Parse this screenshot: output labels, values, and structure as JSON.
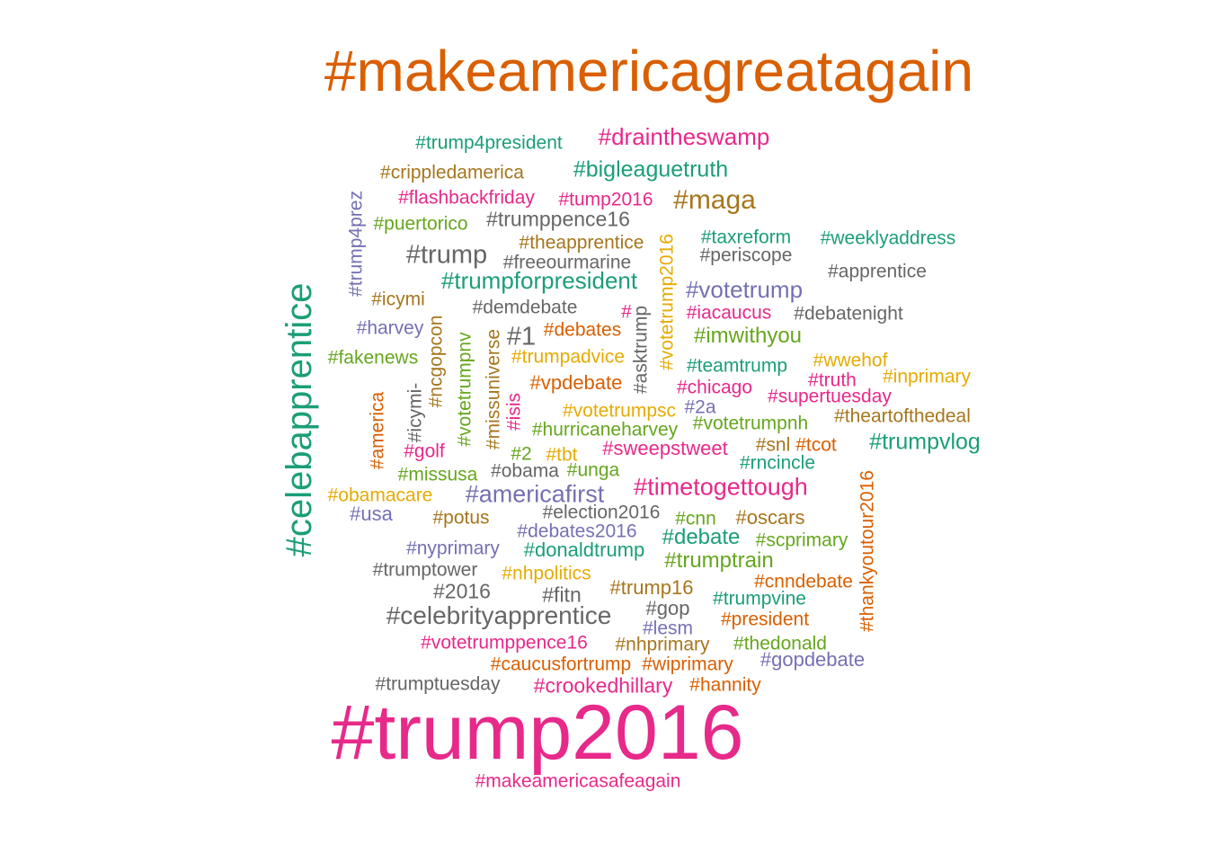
{
  "colors": {
    "green": "#1b9e77",
    "orange": "#d95f02",
    "purple": "#7570b3",
    "pink": "#e7298a",
    "lime": "#66a61e",
    "yellow": "#e6ab02",
    "brown": "#a6761d",
    "gray": "#666666"
  },
  "words": [
    {
      "text": "#makeamericagreatagain",
      "color": "orange"
    },
    {
      "text": "#trump2016",
      "color": "pink"
    },
    {
      "text": "#celebapprentice",
      "color": "green"
    },
    {
      "text": "#trump4president",
      "color": "green"
    },
    {
      "text": "#draintheswamp",
      "color": "pink"
    },
    {
      "text": "#crippledamerica",
      "color": "brown"
    },
    {
      "text": "#bigleaguetruth",
      "color": "green"
    },
    {
      "text": "#flashbackfriday",
      "color": "pink"
    },
    {
      "text": "#tump2016",
      "color": "pink"
    },
    {
      "text": "#maga",
      "color": "brown"
    },
    {
      "text": "#trump4prez",
      "color": "purple"
    },
    {
      "text": "#puertorico",
      "color": "lime"
    },
    {
      "text": "#trumppence16",
      "color": "gray"
    },
    {
      "text": "#votetrump2016",
      "color": "yellow"
    },
    {
      "text": "#taxreform",
      "color": "green"
    },
    {
      "text": "#weeklyaddress",
      "color": "green"
    },
    {
      "text": "#theapprentice",
      "color": "brown"
    },
    {
      "text": "#trump",
      "color": "gray"
    },
    {
      "text": "#periscope",
      "color": "gray"
    },
    {
      "text": "#freeourmarine",
      "color": "gray"
    },
    {
      "text": "#apprentice",
      "color": "gray"
    },
    {
      "text": "#trumpforpresident",
      "color": "green"
    },
    {
      "text": "#votetrump",
      "color": "purple"
    },
    {
      "text": "#icymi",
      "color": "brown"
    },
    {
      "text": "#demdebate",
      "color": "gray"
    },
    {
      "text": "#",
      "color": "pink"
    },
    {
      "text": "#iacaucus",
      "color": "pink"
    },
    {
      "text": "#debatenight",
      "color": "gray"
    },
    {
      "text": "#ncgopcon",
      "color": "brown"
    },
    {
      "text": "#asktrump",
      "color": "gray"
    },
    {
      "text": "#harvey",
      "color": "purple"
    },
    {
      "text": "#debates",
      "color": "orange"
    },
    {
      "text": "#1",
      "color": "gray"
    },
    {
      "text": "#imwithyou",
      "color": "lime"
    },
    {
      "text": "#missuniverse",
      "color": "brown"
    },
    {
      "text": "#votetrumpnv",
      "color": "lime"
    },
    {
      "text": "#fakenews",
      "color": "lime"
    },
    {
      "text": "#trumpadvice",
      "color": "yellow"
    },
    {
      "text": "#wwehof",
      "color": "yellow"
    },
    {
      "text": "#teamtrump",
      "color": "green"
    },
    {
      "text": "#inprimary",
      "color": "yellow"
    },
    {
      "text": "#truth",
      "color": "pink"
    },
    {
      "text": "#icymi-",
      "color": "gray"
    },
    {
      "text": "#vpdebate",
      "color": "orange"
    },
    {
      "text": "#chicago",
      "color": "pink"
    },
    {
      "text": "#supertuesday",
      "color": "pink"
    },
    {
      "text": "#america",
      "color": "orange"
    },
    {
      "text": "#isis",
      "color": "pink"
    },
    {
      "text": "#2a",
      "color": "purple"
    },
    {
      "text": "#votetrumpsc",
      "color": "yellow"
    },
    {
      "text": "#theartofthedeal",
      "color": "brown"
    },
    {
      "text": "#votetrumpnh",
      "color": "lime"
    },
    {
      "text": "#hurricaneharvey",
      "color": "lime"
    },
    {
      "text": "#thankyoutour2016",
      "color": "orange"
    },
    {
      "text": "#trumpvlog",
      "color": "green"
    },
    {
      "text": "#golf",
      "color": "pink"
    },
    {
      "text": "#2",
      "color": "lime"
    },
    {
      "text": "#tbt",
      "color": "yellow"
    },
    {
      "text": "#sweepstweet",
      "color": "pink"
    },
    {
      "text": "#snl",
      "color": "brown"
    },
    {
      "text": "#tcot",
      "color": "orange"
    },
    {
      "text": "#rncincle",
      "color": "green"
    },
    {
      "text": "#missusa",
      "color": "lime"
    },
    {
      "text": "#obama",
      "color": "gray"
    },
    {
      "text": "#unga",
      "color": "lime"
    },
    {
      "text": "#timetogettough",
      "color": "pink"
    },
    {
      "text": "#obamacare",
      "color": "yellow"
    },
    {
      "text": "#americafirst",
      "color": "purple"
    },
    {
      "text": "#usa",
      "color": "purple"
    },
    {
      "text": "#potus",
      "color": "brown"
    },
    {
      "text": "#election2016",
      "color": "gray"
    },
    {
      "text": "#cnn",
      "color": "lime"
    },
    {
      "text": "#oscars",
      "color": "brown"
    },
    {
      "text": "#debates2016",
      "color": "purple"
    },
    {
      "text": "#debate",
      "color": "green"
    },
    {
      "text": "#scprimary",
      "color": "lime"
    },
    {
      "text": "#nyprimary",
      "color": "purple"
    },
    {
      "text": "#donaldtrump",
      "color": "green"
    },
    {
      "text": "#trumptrain",
      "color": "lime"
    },
    {
      "text": "#trumptower",
      "color": "gray"
    },
    {
      "text": "#nhpolitics",
      "color": "yellow"
    },
    {
      "text": "#cnndebate",
      "color": "orange"
    },
    {
      "text": "#2016",
      "color": "gray"
    },
    {
      "text": "#fitn",
      "color": "gray"
    },
    {
      "text": "#trump16",
      "color": "brown"
    },
    {
      "text": "#trumpvine",
      "color": "green"
    },
    {
      "text": "#gop",
      "color": "gray"
    },
    {
      "text": "#celebrityapprentice",
      "color": "gray"
    },
    {
      "text": "#president",
      "color": "orange"
    },
    {
      "text": "#lesm",
      "color": "purple"
    },
    {
      "text": "#votetrumppence16",
      "color": "pink"
    },
    {
      "text": "#nhprimary",
      "color": "brown"
    },
    {
      "text": "#thedonald",
      "color": "lime"
    },
    {
      "text": "#caucusfortrump",
      "color": "orange"
    },
    {
      "text": "#wiprimary",
      "color": "orange"
    },
    {
      "text": "#gopdebate",
      "color": "purple"
    },
    {
      "text": "#trumptuesday",
      "color": "gray"
    },
    {
      "text": "#crookedhillary",
      "color": "pink"
    },
    {
      "text": "#hannity",
      "color": "orange"
    },
    {
      "text": "#makeamericasafeagain",
      "color": "pink"
    }
  ]
}
